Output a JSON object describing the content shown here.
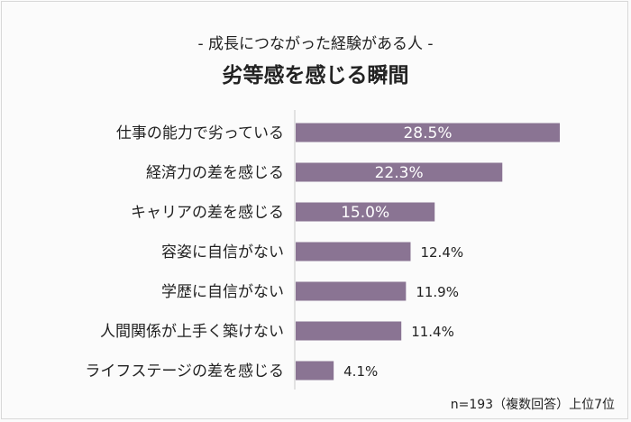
{
  "chart_data": {
    "type": "bar",
    "orientation": "horizontal",
    "subtitle": "- 成長につながった経験がある人 -",
    "title": "劣等感を感じる瞬間",
    "categories": [
      "仕事の能力で劣っている",
      "経済力の差を感じる",
      "キャリアの差を感じる",
      "容姿に自信がない",
      "学歴に自信がない",
      "人間関係が上手く築けない",
      "ライフステージの差を感じる"
    ],
    "values": [
      28.5,
      22.3,
      15.0,
      12.4,
      11.9,
      11.4,
      4.1
    ],
    "data_labels": [
      "28.5%",
      "22.3%",
      "15.0%",
      "12.4%",
      "11.9%",
      "11.4%",
      "4.1%"
    ],
    "unit": "%",
    "grid": false,
    "bar_color": "#8a7493",
    "note": "n=193（複数回答）上位7位"
  }
}
